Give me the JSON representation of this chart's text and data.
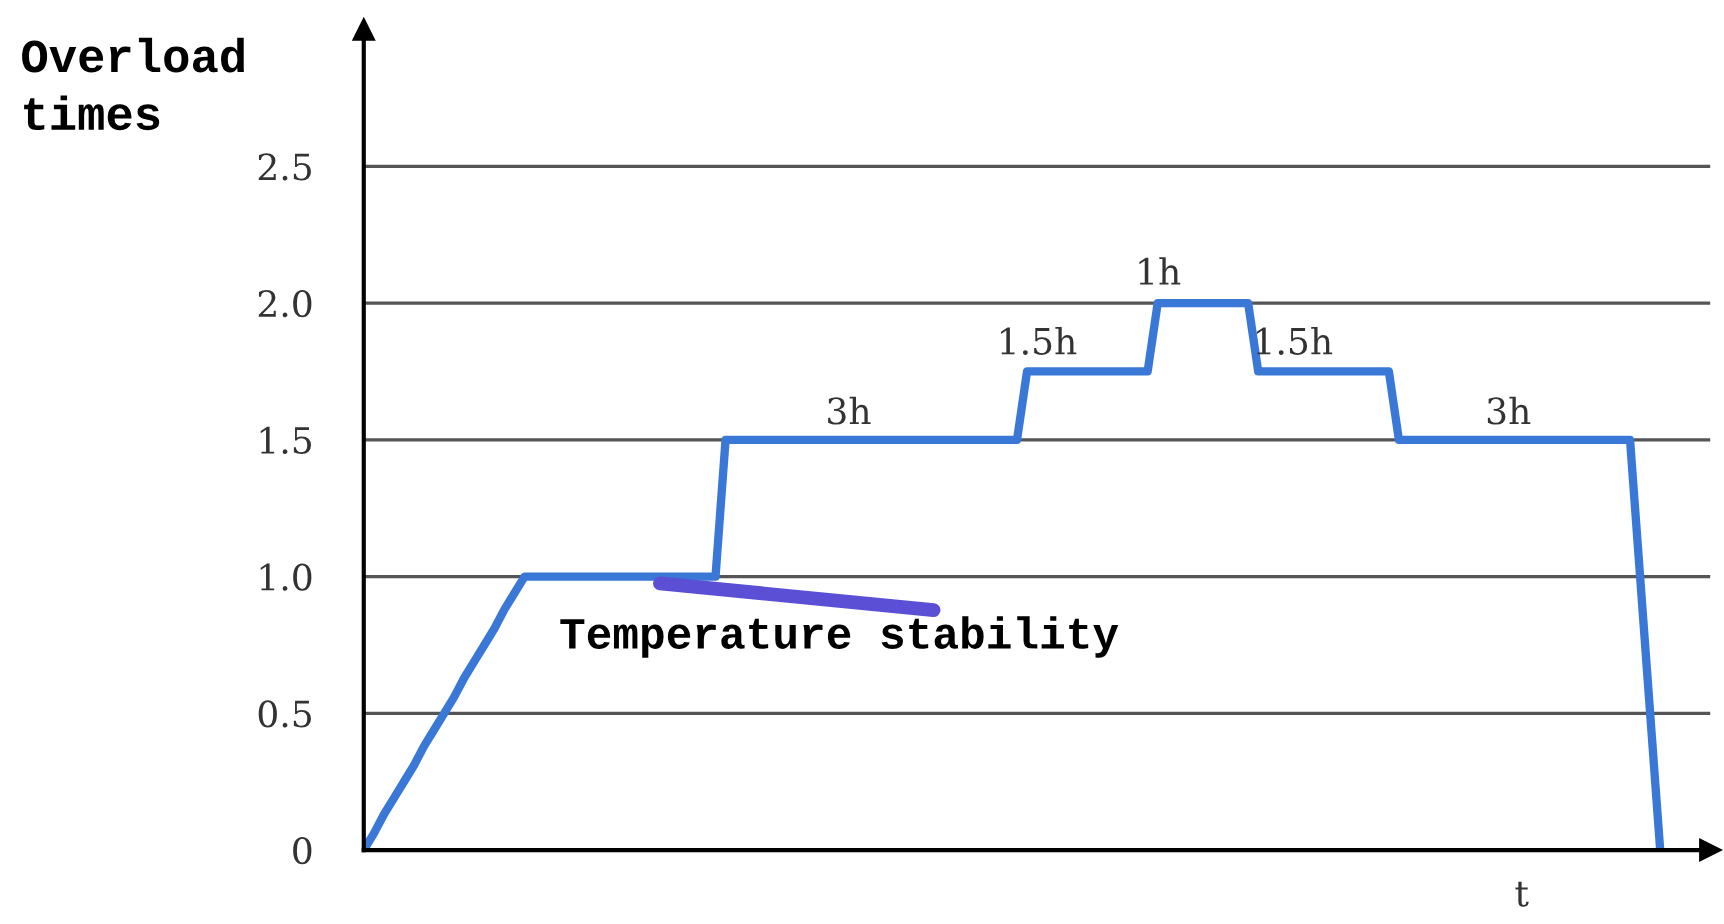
{
  "chart_data": {
    "type": "line",
    "ylabel": "Overload\ntimes",
    "xlabel": "t",
    "categories": [
      null,
      null,
      null,
      null,
      null,
      null,
      null,
      null,
      null,
      null,
      null,
      null,
      null,
      null,
      null,
      null,
      null,
      null,
      null,
      null,
      null,
      null,
      null,
      null,
      null,
      null,
      null,
      null,
      null,
      null,
      null,
      null,
      null,
      null,
      null,
      null,
      null,
      null,
      null,
      null,
      null,
      null,
      null,
      null,
      null,
      null,
      null,
      null,
      null,
      null,
      null,
      null,
      null,
      null,
      null,
      null,
      null,
      null,
      null,
      null,
      null,
      null,
      null,
      null,
      null,
      null,
      null,
      null,
      null,
      null,
      null,
      null,
      null,
      null,
      null,
      null,
      null,
      null,
      null,
      null,
      null,
      null,
      null,
      null,
      null,
      null,
      null,
      null,
      null,
      null,
      null,
      null,
      null,
      null,
      null,
      null,
      null,
      null,
      null,
      null,
      null,
      null,
      null,
      null,
      null,
      null,
      null,
      null,
      null,
      null,
      null,
      null,
      null,
      null,
      null,
      null,
      null,
      null,
      null,
      null,
      null,
      null,
      null,
      null,
      null,
      null,
      null,
      null,
      null,
      null
    ],
    "series": [
      {
        "color": "#3a78d8",
        "values": [
          0,
          0.06,
          0.13,
          0.19,
          0.25,
          0.31,
          0.38,
          0.44,
          0.5,
          0.56,
          0.63,
          0.69,
          0.75,
          0.81,
          0.88,
          0.94,
          1.0,
          1.0,
          1.0,
          1.0,
          1.0,
          1.0,
          1.0,
          1.0,
          1.0,
          1.0,
          1.0,
          1.0,
          1.0,
          1.0,
          1.0,
          1.0,
          1.0,
          1.0,
          1.0,
          1.0,
          1.5,
          1.5,
          1.5,
          1.5,
          1.5,
          1.5,
          1.5,
          1.5,
          1.5,
          1.5,
          1.5,
          1.5,
          1.5,
          1.5,
          1.5,
          1.5,
          1.5,
          1.5,
          1.5,
          1.5,
          1.5,
          1.5,
          1.5,
          1.5,
          1.5,
          1.5,
          1.5,
          1.5,
          1.5,
          1.5,
          1.75,
          1.75,
          1.75,
          1.75,
          1.75,
          1.75,
          1.75,
          1.75,
          1.75,
          1.75,
          1.75,
          1.75,
          1.75,
          2.0,
          2.0,
          2.0,
          2.0,
          2.0,
          2.0,
          2.0,
          2.0,
          2.0,
          2.0,
          1.75,
          1.75,
          1.75,
          1.75,
          1.75,
          1.75,
          1.75,
          1.75,
          1.75,
          1.75,
          1.75,
          1.75,
          1.75,
          1.75,
          1.5,
          1.5,
          1.5,
          1.5,
          1.5,
          1.5,
          1.5,
          1.5,
          1.5,
          1.5,
          1.5,
          1.5,
          1.5,
          1.5,
          1.5,
          1.5,
          1.5,
          1.5,
          1.5,
          1.5,
          1.5,
          1.5,
          1.5,
          1.5,
          1.0,
          0.5,
          0
        ]
      }
    ],
    "ylim": [
      0,
      3
    ],
    "yticks": [
      0,
      0.5,
      {
        "value": 1,
        "label": "1.0"
      },
      1.5,
      {
        "value": 2,
        "label": "2.0"
      },
      2.5
    ],
    "grid": "y",
    "marker": "none",
    "line_style": "solid",
    "annotations": [
      "3h",
      "1.5h",
      "1h",
      "1.5h",
      "3h",
      "Temperature stability"
    ]
  }
}
